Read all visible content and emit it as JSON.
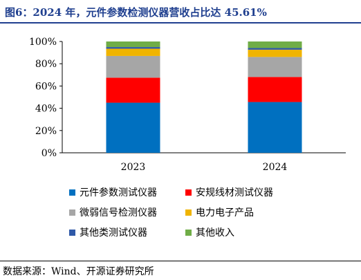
{
  "header": {
    "title": "图6：2024 年，元件参数检测仪器营收占比达 45.61%"
  },
  "footer": {
    "source": "数据来源：Wind、开源证券研究所"
  },
  "colors": {
    "title": "#1f3f8f",
    "rule": "#1f3f8f"
  },
  "chart_data": {
    "type": "bar",
    "stacked": true,
    "categories": [
      "2023",
      "2024"
    ],
    "ylim": [
      0,
      100
    ],
    "yticks": [
      "0%",
      "20%",
      "40%",
      "60%",
      "80%",
      "100%"
    ],
    "grid": false,
    "legend_position": "bottom",
    "series": [
      {
        "name": "元件参数测试仪器",
        "color": "#0070c0",
        "values": [
          45.0,
          45.61
        ]
      },
      {
        "name": "安规线材测试仪器",
        "color": "#ff0000",
        "values": [
          22.5,
          22.5
        ]
      },
      {
        "name": "微弱信号检测仪器",
        "color": "#a6a6a6",
        "values": [
          19.5,
          18.0
        ]
      },
      {
        "name": "电力电子产品",
        "color": "#f0b400",
        "values": [
          6.5,
          6.5
        ]
      },
      {
        "name": "其他类测试仪器",
        "color": "#2f59a8",
        "values": [
          1.5,
          1.5
        ]
      },
      {
        "name": "其他收入",
        "color": "#70ad47",
        "values": [
          5.0,
          5.89
        ]
      }
    ]
  }
}
